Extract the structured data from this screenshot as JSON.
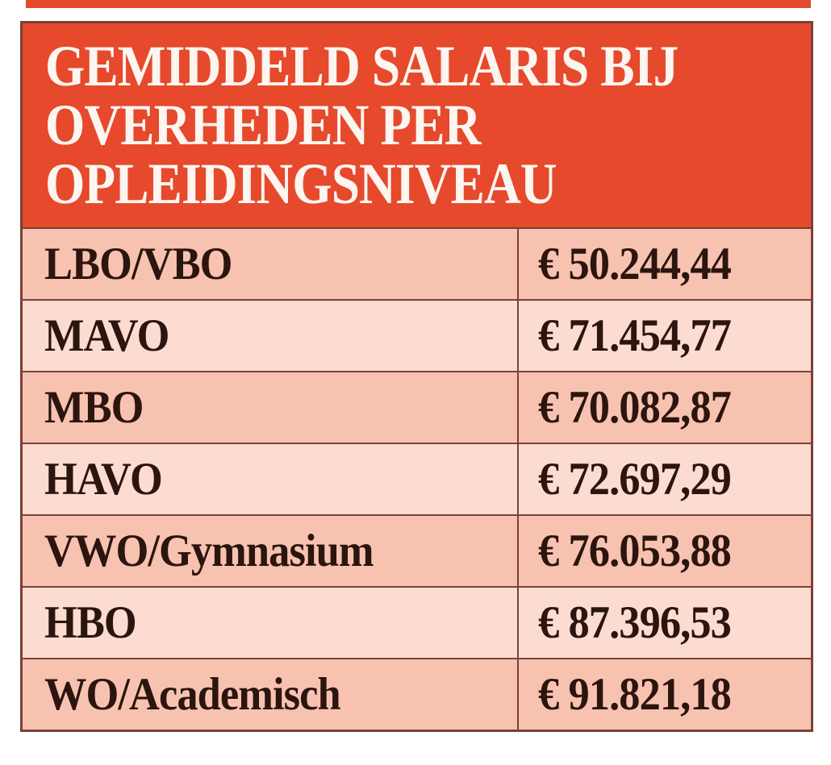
{
  "colors": {
    "header_red": "#e6492c",
    "row_dark": "#f8c2b1",
    "row_light": "#fcdcd1",
    "border": "#7a4136",
    "title_text": "#fdf5f0",
    "cell_text": "#2b150e",
    "page_bg": "#ffffff"
  },
  "header": {
    "title_lines": [
      "GEMIDDELD SALARIS BIJ",
      "OVERHEDEN PER",
      "OPLEIDINGSNIVEAU"
    ]
  },
  "table": {
    "rows": [
      {
        "label": "LBO/VBO",
        "value": "€ 50.244,44"
      },
      {
        "label": "MAVO",
        "value": "€ 71.454,77"
      },
      {
        "label": "MBO",
        "value": "€ 70.082,87"
      },
      {
        "label": "HAVO",
        "value": "€ 72.697,29"
      },
      {
        "label": "VWO/Gymnasium",
        "value": "€ 76.053,88"
      },
      {
        "label": "HBO",
        "value": "€ 87.396,53"
      },
      {
        "label": "WO/Academisch",
        "value": "€ 91.821,18"
      }
    ]
  },
  "chart_data": {
    "type": "table",
    "title": "GEMIDDELD SALARIS BIJ OVERHEDEN PER OPLEIDINGSNIVEAU",
    "categories": [
      "LBO/VBO",
      "MAVO",
      "MBO",
      "HAVO",
      "VWO/Gymnasium",
      "HBO",
      "WO/Academisch"
    ],
    "values": [
      50244.44,
      71454.77,
      70082.87,
      72697.29,
      76053.88,
      87396.53,
      91821.18
    ],
    "value_labels": [
      "€ 50.244,44",
      "€ 71.454,77",
      "€ 70.082,87",
      "€ 72.697,29",
      "€ 76.053,88",
      "€ 87.396,53",
      "€ 91.821,18"
    ],
    "legend": "none",
    "layout": "two-column table, education level left, average salary right, alternating row shading"
  }
}
